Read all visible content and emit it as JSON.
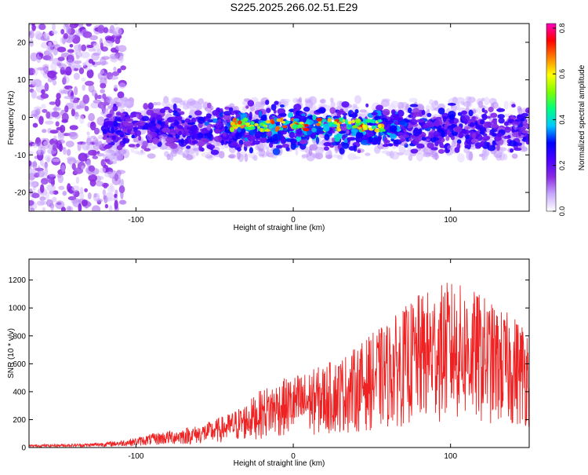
{
  "title": "S225.2025.266.02.51.E29",
  "chart_data": [
    {
      "type": "heatmap",
      "xlabel": "Height of straight line (km)",
      "ylabel": "Frequency (Hz)",
      "xlim": [
        -168,
        150
      ],
      "ylim": [
        -25,
        25
      ],
      "xticks": [
        -100,
        0,
        100
      ],
      "yticks": [
        -20,
        -10,
        0,
        10,
        20
      ],
      "colorbar": {
        "label": "Normalized spectral amplitude",
        "range": [
          0.0,
          0.82
        ],
        "ticks": [
          0.0,
          0.2,
          0.4,
          0.6,
          0.8
        ],
        "colors": [
          "#ffffff",
          "#c9a9ff",
          "#8a2be2",
          "#4b00ff",
          "#0000ff",
          "#00c8ff",
          "#00ff80",
          "#80ff00",
          "#ffff00",
          "#ff8000",
          "#ff0000",
          "#ff00c0"
        ]
      },
      "band": {
        "center_freq_hz": -3,
        "half_width_hz": 6,
        "peak_region_km": [
          -40,
          60
        ],
        "peak_amplitude": 0.75
      },
      "grid": false
    },
    {
      "type": "line",
      "color": "#ee2222",
      "xlabel": "Height of straight line (km)",
      "ylabel": "SNR (10 * v/v)",
      "xlim": [
        -168,
        150
      ],
      "ylim": [
        0,
        1350
      ],
      "xticks": [
        -100,
        0,
        100
      ],
      "yticks": [
        0,
        200,
        400,
        600,
        800,
        1000,
        1200
      ],
      "envelope": {
        "x": [
          -168,
          -130,
          -110,
          -100,
          -90,
          -80,
          -70,
          -60,
          -50,
          -40,
          -30,
          -20,
          -10,
          0,
          10,
          20,
          30,
          40,
          50,
          60,
          70,
          80,
          90,
          100,
          110,
          120,
          130,
          140,
          150
        ],
        "y": [
          20,
          30,
          50,
          70,
          100,
          120,
          140,
          160,
          200,
          250,
          320,
          420,
          480,
          520,
          550,
          600,
          650,
          720,
          820,
          900,
          1000,
          1100,
          1150,
          1200,
          1150,
          1100,
          1000,
          950,
          900
        ]
      },
      "grid": false
    }
  ]
}
